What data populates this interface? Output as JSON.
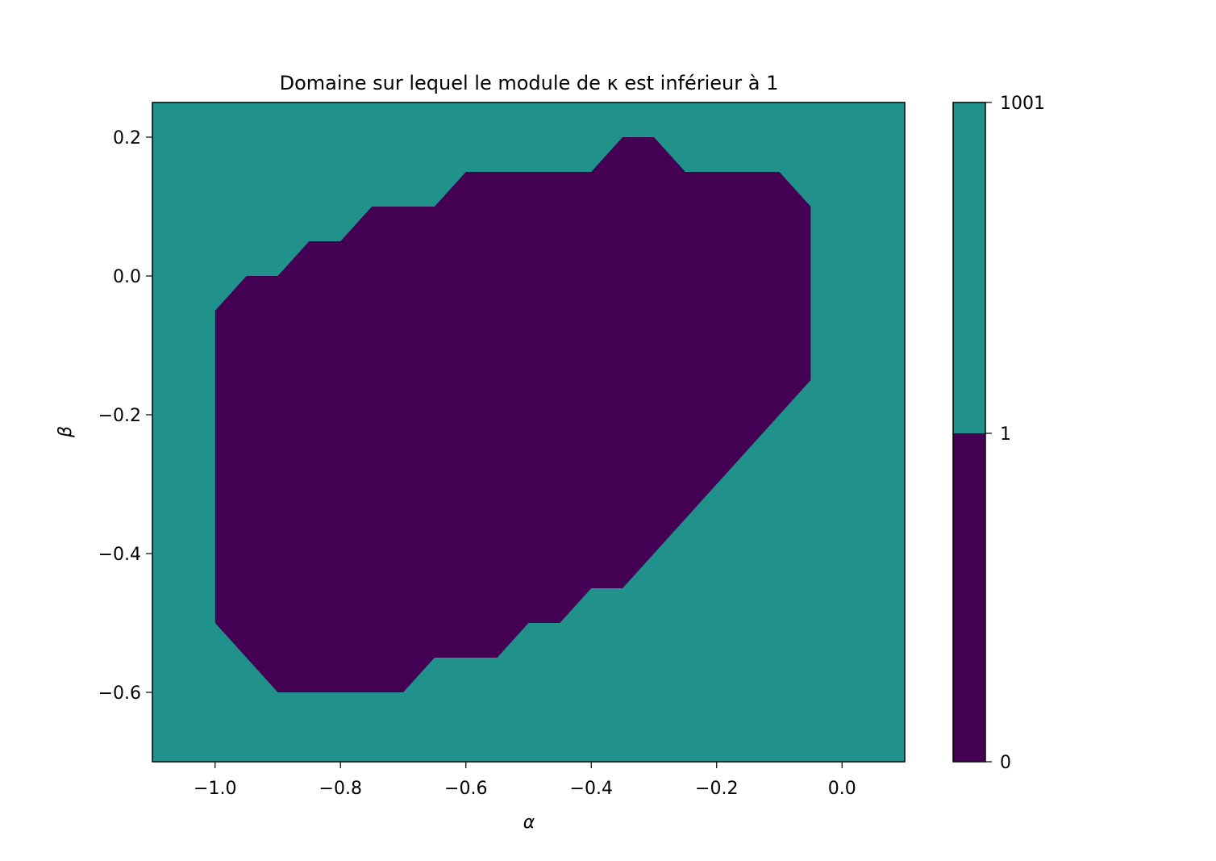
{
  "chart_data": {
    "type": "contourf",
    "title": "Domaine sur lequel le module de κ est inférieur à 1",
    "xlabel": "α",
    "ylabel": "β",
    "xlim": [
      -1.1,
      0.1
    ],
    "ylim": [
      -0.7,
      0.25
    ],
    "x_ticks": [
      -1.0,
      -0.8,
      -0.6,
      -0.4,
      -0.2,
      0.0
    ],
    "x_tick_labels": [
      "−1.0",
      "−0.8",
      "−0.6",
      "−0.4",
      "−0.2",
      "0.0"
    ],
    "y_ticks": [
      0.2,
      0.0,
      -0.2,
      -0.4,
      -0.6
    ],
    "y_tick_labels": [
      "0.2",
      "0.0",
      "−0.2",
      "−0.4",
      "−0.6"
    ],
    "levels": [
      0,
      1,
      1001
    ],
    "level_labels": [
      "0",
      "1",
      "1001"
    ],
    "colors": {
      "above_one": "#21918c",
      "below_one": "#440154"
    },
    "region_below_one": [
      [
        -1.0,
        -0.05
      ],
      [
        -0.95,
        0.0
      ],
      [
        -0.9,
        0.0
      ],
      [
        -0.85,
        0.05
      ],
      [
        -0.8,
        0.05
      ],
      [
        -0.75,
        0.1
      ],
      [
        -0.65,
        0.1
      ],
      [
        -0.6,
        0.15
      ],
      [
        -0.4,
        0.15
      ],
      [
        -0.35,
        0.2
      ],
      [
        -0.3,
        0.2
      ],
      [
        -0.25,
        0.15
      ],
      [
        -0.1,
        0.15
      ],
      [
        -0.05,
        0.1
      ],
      [
        -0.05,
        -0.15
      ],
      [
        -0.35,
        -0.45
      ],
      [
        -0.4,
        -0.45
      ],
      [
        -0.45,
        -0.5
      ],
      [
        -0.5,
        -0.5
      ],
      [
        -0.55,
        -0.55
      ],
      [
        -0.65,
        -0.55
      ],
      [
        -0.7,
        -0.6
      ],
      [
        -0.9,
        -0.6
      ],
      [
        -1.0,
        -0.5
      ]
    ],
    "grid": false,
    "legend": "colorbar-right"
  }
}
